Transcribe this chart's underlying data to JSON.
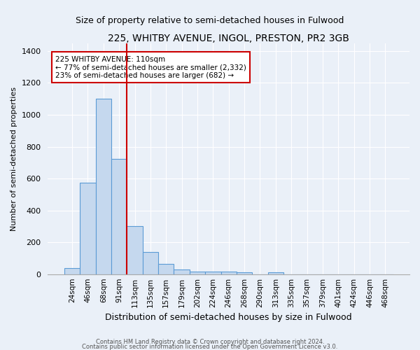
{
  "title": "225, WHITBY AVENUE, INGOL, PRESTON, PR2 3GB",
  "subtitle": "Size of property relative to semi-detached houses in Fulwood",
  "xlabel": "Distribution of semi-detached houses by size in Fulwood",
  "ylabel": "Number of semi-detached properties",
  "footnote1": "Contains HM Land Registry data © Crown copyright and database right 2024.",
  "footnote2": "Contains public sector information licensed under the Open Government Licence v3.0.",
  "categories": [
    "24sqm",
    "46sqm",
    "68sqm",
    "91sqm",
    "113sqm",
    "135sqm",
    "157sqm",
    "179sqm",
    "202sqm",
    "224sqm",
    "246sqm",
    "268sqm",
    "290sqm",
    "313sqm",
    "335sqm",
    "357sqm",
    "379sqm",
    "401sqm",
    "424sqm",
    "446sqm",
    "468sqm"
  ],
  "values": [
    38,
    575,
    1100,
    725,
    300,
    138,
    65,
    30,
    18,
    18,
    18,
    10,
    0,
    10,
    0,
    0,
    0,
    0,
    0,
    0,
    0
  ],
  "bar_color": "#c5d8ee",
  "bar_edge_color": "#5b9bd5",
  "vline_x_index": 4,
  "vline_color": "#cc0000",
  "ylim": [
    0,
    1450
  ],
  "yticks": [
    0,
    200,
    400,
    600,
    800,
    1000,
    1200,
    1400
  ],
  "annotation_text": "225 WHITBY AVENUE: 110sqm\n← 77% of semi-detached houses are smaller (2,332)\n23% of semi-detached houses are larger (682) →",
  "annotation_box_color": "#ffffff",
  "annotation_box_edge_color": "#cc0000",
  "background_color": "#eaf0f8",
  "plot_bg_color": "#eaf0f8",
  "title_fontsize": 10,
  "subtitle_fontsize": 9
}
